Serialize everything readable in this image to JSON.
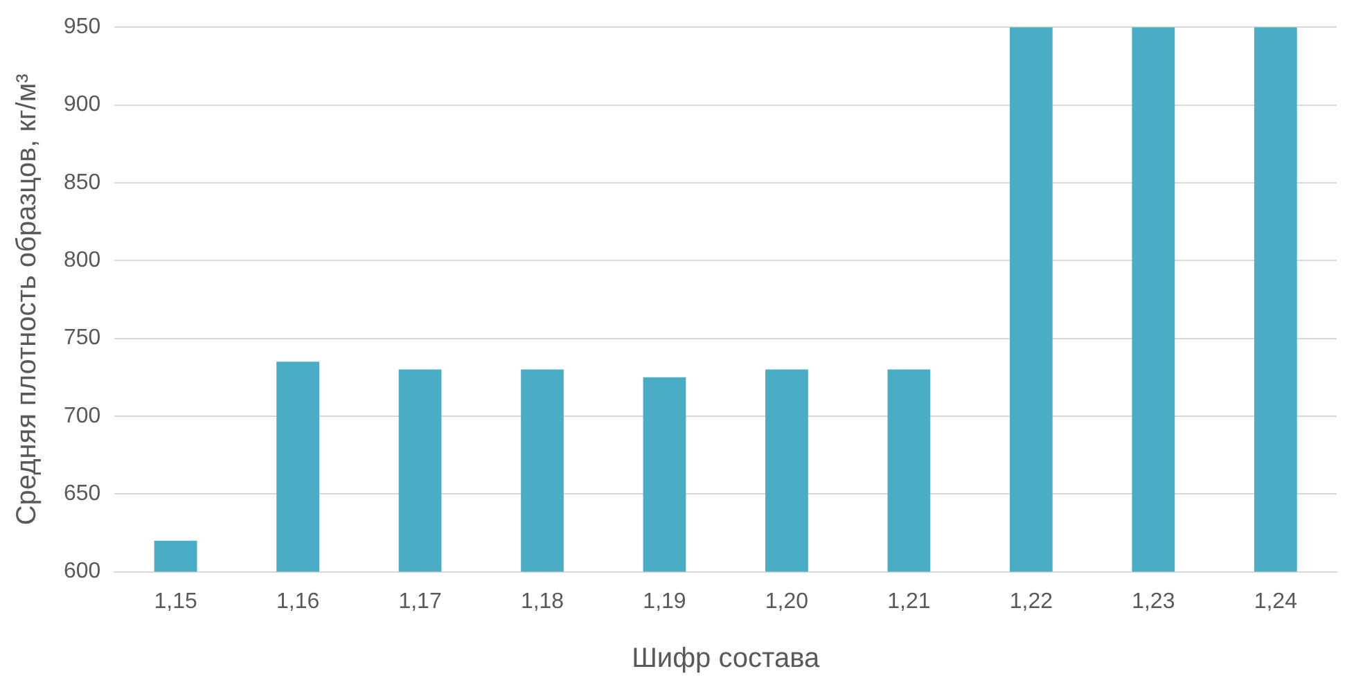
{
  "chart_data": {
    "type": "bar",
    "xlabel": "Шифр состава",
    "ylabel": "Средняя плотность образцов, кг/м³",
    "categories": [
      "1,15",
      "1,16",
      "1,17",
      "1,18",
      "1,19",
      "1,20",
      "1,21",
      "1,22",
      "1,23",
      "1,24"
    ],
    "values": [
      620,
      735,
      730,
      730,
      725,
      730,
      730,
      950,
      950,
      950
    ],
    "color": "#4bacc6",
    "ylim": [
      600,
      950
    ],
    "yticks": [
      600,
      650,
      700,
      750,
      800,
      850,
      900,
      950
    ],
    "grid": "y",
    "legend": false
  }
}
